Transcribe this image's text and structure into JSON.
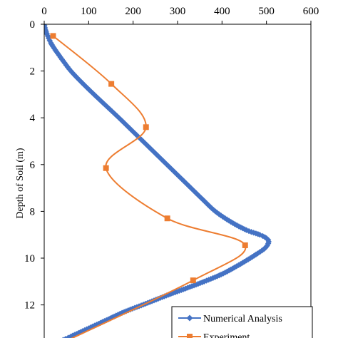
{
  "chart_data": {
    "type": "line",
    "ylabel": "Depth of Soil (m)",
    "xlabel": "",
    "xlim": [
      0,
      600
    ],
    "ylim": [
      0,
      13.5
    ],
    "y_inverted": true,
    "x_axis_position": "top",
    "x_ticks": [
      0,
      100,
      200,
      300,
      400,
      500,
      600
    ],
    "y_ticks": [
      0,
      2,
      4,
      6,
      8,
      10,
      12
    ],
    "grid": false,
    "legend_position": "bottom-right",
    "series": [
      {
        "name": "Numerical Analysis",
        "color": "#4472C4",
        "marker": "diamond",
        "points": [
          [
            0,
            0
          ],
          [
            3,
            0.25
          ],
          [
            8,
            0.5
          ],
          [
            15,
            0.8
          ],
          [
            25,
            1.1
          ],
          [
            40,
            1.5
          ],
          [
            60,
            2.0
          ],
          [
            85,
            2.5
          ],
          [
            112,
            3.0
          ],
          [
            140,
            3.5
          ],
          [
            168,
            4.0
          ],
          [
            195,
            4.5
          ],
          [
            222,
            5.0
          ],
          [
            249,
            5.5
          ],
          [
            276,
            6.0
          ],
          [
            303,
            6.5
          ],
          [
            330,
            7.0
          ],
          [
            357,
            7.5
          ],
          [
            385,
            8.0
          ],
          [
            420,
            8.45
          ],
          [
            455,
            8.8
          ],
          [
            485,
            9.0
          ],
          [
            500,
            9.15
          ],
          [
            505,
            9.3
          ],
          [
            498,
            9.55
          ],
          [
            480,
            9.8
          ],
          [
            455,
            10.1
          ],
          [
            428,
            10.4
          ],
          [
            398,
            10.7
          ],
          [
            360,
            11.0
          ],
          [
            318,
            11.3
          ],
          [
            275,
            11.6
          ],
          [
            228,
            11.95
          ],
          [
            180,
            12.3
          ],
          [
            140,
            12.65
          ],
          [
            100,
            13.0
          ],
          [
            60,
            13.35
          ],
          [
            30,
            13.6
          ]
        ]
      },
      {
        "name": "Experiment",
        "color": "#ED7D31",
        "marker": "square",
        "points": [
          [
            20,
            0.5
          ],
          [
            151,
            2.55
          ],
          [
            229,
            4.4
          ],
          [
            139,
            6.15
          ],
          [
            277,
            8.3
          ],
          [
            452,
            9.45
          ],
          [
            335,
            10.95
          ],
          [
            20,
            13.8
          ]
        ]
      }
    ]
  }
}
